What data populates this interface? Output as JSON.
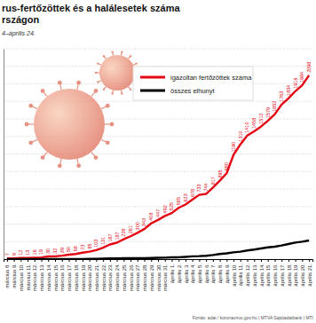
{
  "chart_data": {
    "type": "line",
    "title": "rus-fertőzöttek és a halálesetek száma\nrszágon",
    "subtitle": "4–április 24.",
    "source": "Forrás: adat / koronavirus.gov.hu | MTVA Sajtóadatbank | MTI",
    "categories": [
      "március 8.",
      "március 9.",
      "március 10.",
      "március 11.",
      "március 12.",
      "március 13.",
      "március 14.",
      "március 15.",
      "március 16.",
      "március 17.",
      "március 18.",
      "március 19.",
      "március 20.",
      "március 21.",
      "március 22.",
      "március 23.",
      "március 24.",
      "március 25.",
      "március 26.",
      "március 27.",
      "március 28.",
      "március 29.",
      "március 30.",
      "március 31.",
      "április 1.",
      "április 2.",
      "április 3.",
      "április 4.",
      "április 5.",
      "április 6.",
      "április 7.",
      "április 8.",
      "április 9.",
      "április 10.",
      "április 11.",
      "április 12.",
      "április 13.",
      "április 14.",
      "április 15.",
      "április 16.",
      "április 17.",
      "április 18.",
      "április 19.",
      "április 20.",
      "április 21."
    ],
    "series": [
      {
        "name": "igazoltan fertőzöttek száma",
        "color": "#e30613",
        "data_labels": true,
        "values": [
          7,
          9,
          12,
          13,
          16,
          19,
          30,
          32,
          39,
          50,
          58,
          73,
          85,
          103,
          131,
          167,
          187,
          226,
          261,
          300,
          343,
          408,
          447,
          492,
          525,
          585,
          623,
          678,
          733,
          744,
          817,
          895,
          980,
          1190,
          1310,
          1410,
          1458,
          1512,
          1579,
          1652,
          1763,
          1834,
          1916,
          1984,
          2098
        ]
      },
      {
        "name": "összes elhunyt",
        "color": "#000000",
        "data_labels": false,
        "values": [
          0,
          0,
          0,
          0,
          0,
          0,
          0,
          1,
          1,
          1,
          1,
          1,
          3,
          4,
          6,
          7,
          9,
          10,
          10,
          10,
          11,
          13,
          15,
          16,
          20,
          21,
          26,
          32,
          34,
          38,
          47,
          58,
          66,
          77,
          85,
          99,
          109,
          122,
          134,
          142,
          156,
          172,
          189,
          199,
          213
        ]
      }
    ],
    "ylim": [
      0,
      2400
    ],
    "yticks": [
      0,
      200,
      400,
      600,
      800,
      1000,
      1200,
      1400,
      1600,
      1800,
      2000,
      2200,
      2400
    ],
    "grid": true,
    "tick_labels": "x",
    "legend": "top-right"
  }
}
